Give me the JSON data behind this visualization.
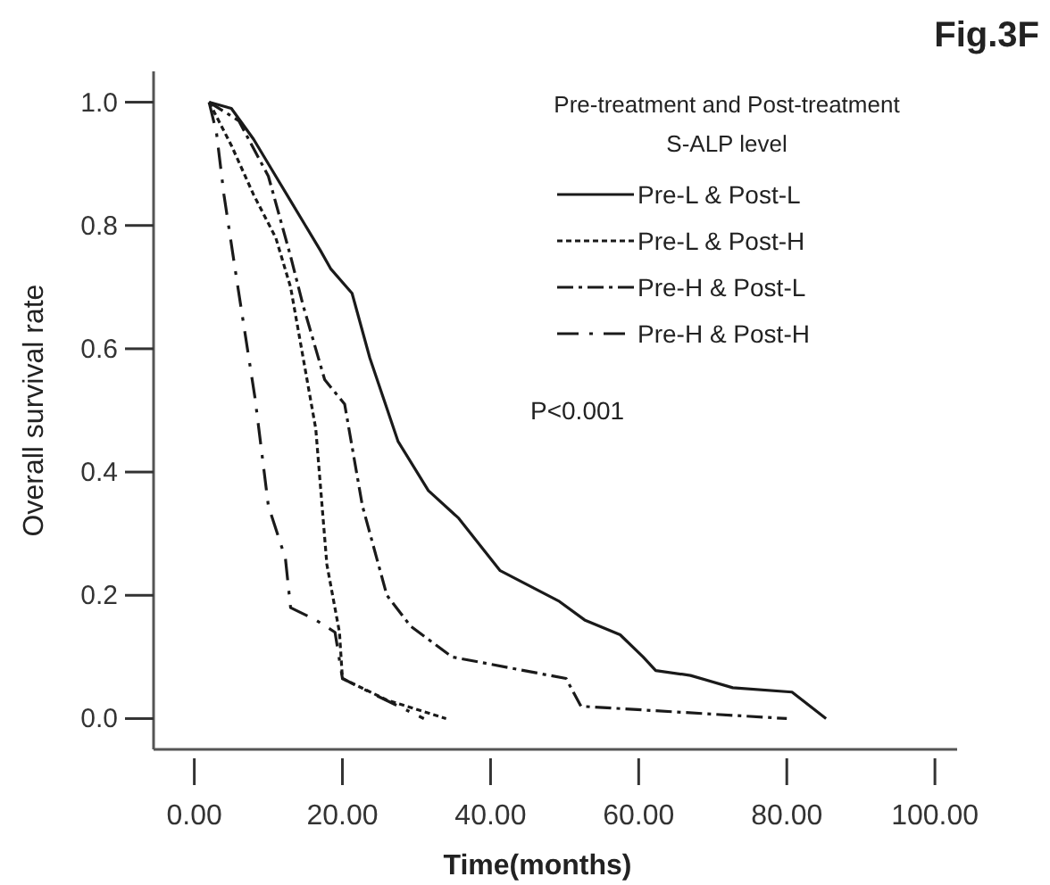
{
  "chart_data": {
    "type": "line",
    "title": "Fig.3F",
    "xlabel": "Time(months)",
    "ylabel": "Overall survival rate",
    "legend_title": "Pre-treatment and Post-treatment S-ALP level",
    "annotations": [
      "P<0.001"
    ],
    "xlim": [
      -5.5,
      103
    ],
    "ylim": [
      -0.05,
      1.05
    ],
    "xticks": [
      {
        "value": 0,
        "label": "0.00"
      },
      {
        "value": 20,
        "label": "20.00"
      },
      {
        "value": 40,
        "label": "40.00"
      },
      {
        "value": 60,
        "label": "60.00"
      },
      {
        "value": 80,
        "label": "80.00"
      },
      {
        "value": 100,
        "label": "100.00"
      }
    ],
    "yticks": [
      {
        "value": 0,
        "label": "0.0"
      },
      {
        "value": 0.2,
        "label": "0.2"
      },
      {
        "value": 0.4,
        "label": "0.4"
      },
      {
        "value": 0.6,
        "label": "0.6"
      },
      {
        "value": 0.8,
        "label": "0.8"
      },
      {
        "value": 1,
        "label": "1.0"
      }
    ],
    "grid": false,
    "legend": "top right",
    "marker": "none",
    "series": [
      {
        "name": "Pre-L & Post-L",
        "color": "#1a1a1a",
        "line_style": "solid",
        "x": [
          2,
          5,
          8,
          11,
          13,
          15,
          17,
          18.4,
          21.3,
          23.7,
          27.5,
          31.6,
          35.7,
          41.3,
          49.3,
          52.7,
          57.5,
          60.6,
          62.3,
          67,
          72.7,
          80.7,
          85.3
        ],
        "values": [
          1.0,
          0.99,
          0.94,
          0.88,
          0.84,
          0.8,
          0.76,
          0.73,
          0.69,
          0.585,
          0.45,
          0.37,
          0.325,
          0.24,
          0.19,
          0.16,
          0.136,
          0.1,
          0.078,
          0.07,
          0.05,
          0.043,
          0.0
        ]
      },
      {
        "name": "Pre-L & Post-H",
        "color": "#1a1a1a",
        "line_style": "dotted",
        "x": [
          2,
          5,
          8,
          11,
          13,
          16.4,
          17.9,
          19.6,
          20,
          26,
          34
        ],
        "values": [
          1.0,
          0.93,
          0.85,
          0.78,
          0.7,
          0.47,
          0.25,
          0.14,
          0.065,
          0.03,
          0.0
        ]
      },
      {
        "name": "Pre-H & Post-L",
        "color": "#1a1a1a",
        "line_style": "dashdot",
        "x": [
          2,
          6,
          10,
          13,
          14.7,
          17.6,
          20.3,
          22.7,
          26,
          29.2,
          34.8,
          50.2,
          52.2,
          80
        ],
        "values": [
          1.0,
          0.97,
          0.88,
          0.75,
          0.67,
          0.55,
          0.51,
          0.345,
          0.2,
          0.15,
          0.1,
          0.065,
          0.02,
          0.0
        ]
      },
      {
        "name": "Pre-H & Post-H",
        "color": "#1a1a1a",
        "line_style": "longdashdot",
        "x": [
          2,
          3,
          4,
          5.5,
          8.2,
          10,
          12.3,
          13,
          16.4,
          19,
          20,
          25,
          31
        ],
        "values": [
          1.0,
          0.95,
          0.85,
          0.73,
          0.52,
          0.345,
          0.26,
          0.18,
          0.16,
          0.14,
          0.065,
          0.035,
          0.0
        ]
      }
    ]
  }
}
